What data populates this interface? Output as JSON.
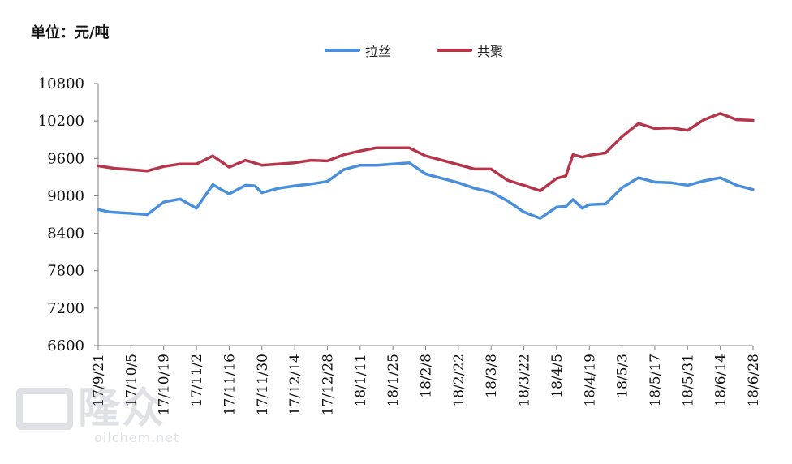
{
  "unit_label": "单位：元/吨",
  "watermark": {
    "logo_text": "隆众",
    "site": "oilchem.net"
  },
  "colors": {
    "axis": "#7f7f7f"
  },
  "chart_data": {
    "type": "line",
    "ylim": [
      6600,
      10800
    ],
    "y_ticks": [
      6600,
      7200,
      7800,
      8400,
      9000,
      9600,
      10200,
      10800
    ],
    "y_tick_labels": [
      "6600",
      "7200",
      "7800",
      "8400",
      "9000",
      "9600",
      "10200",
      "10800"
    ],
    "x_tick_labels": [
      "17/9/21",
      "17/10/5",
      "17/10/19",
      "17/11/2",
      "17/11/16",
      "17/11/30",
      "17/12/14",
      "17/12/28",
      "18/1/11",
      "18/1/25",
      "18/2/8",
      "18/2/22",
      "18/3/8",
      "18/3/22",
      "18/4/5",
      "18/4/19",
      "18/5/3",
      "18/5/17",
      "18/5/31",
      "18/6/14",
      "18/6/28"
    ],
    "legend_position": "top-center",
    "series": [
      {
        "name": "拉丝",
        "color": "#4a8fdc",
        "points": [
          [
            "17/9/21",
            8780
          ],
          [
            "17/9/26",
            8740
          ],
          [
            "17/10/5",
            8720
          ],
          [
            "17/10/12",
            8700
          ],
          [
            "17/10/19",
            8900
          ],
          [
            "17/10/26",
            8950
          ],
          [
            "17/11/2",
            8800
          ],
          [
            "17/11/9",
            9180
          ],
          [
            "17/11/16",
            9030
          ],
          [
            "17/11/23",
            9170
          ],
          [
            "17/11/27",
            9160
          ],
          [
            "17/11/30",
            9050
          ],
          [
            "17/12/7",
            9120
          ],
          [
            "17/12/14",
            9160
          ],
          [
            "17/12/21",
            9190
          ],
          [
            "17/12/28",
            9230
          ],
          [
            "18/1/4",
            9420
          ],
          [
            "18/1/11",
            9490
          ],
          [
            "18/1/18",
            9490
          ],
          [
            "18/1/25",
            9510
          ],
          [
            "18/2/1",
            9530
          ],
          [
            "18/2/8",
            9350
          ],
          [
            "18/2/15",
            9280
          ],
          [
            "18/2/22",
            9210
          ],
          [
            "18/3/1",
            9120
          ],
          [
            "18/3/8",
            9060
          ],
          [
            "18/3/15",
            8920
          ],
          [
            "18/3/22",
            8740
          ],
          [
            "18/3/29",
            8640
          ],
          [
            "18/4/5",
            8820
          ],
          [
            "18/4/9",
            8830
          ],
          [
            "18/4/12",
            8940
          ],
          [
            "18/4/16",
            8800
          ],
          [
            "18/4/19",
            8860
          ],
          [
            "18/4/26",
            8870
          ],
          [
            "18/5/3",
            9130
          ],
          [
            "18/5/10",
            9290
          ],
          [
            "18/5/17",
            9220
          ],
          [
            "18/5/24",
            9210
          ],
          [
            "18/5/31",
            9170
          ],
          [
            "18/6/7",
            9240
          ],
          [
            "18/6/14",
            9290
          ],
          [
            "18/6/21",
            9170
          ],
          [
            "18/6/28",
            9100
          ]
        ]
      },
      {
        "name": "共聚",
        "color": "#b5364b",
        "points": [
          [
            "17/9/21",
            9480
          ],
          [
            "17/9/28",
            9440
          ],
          [
            "17/10/5",
            9420
          ],
          [
            "17/10/12",
            9400
          ],
          [
            "17/10/19",
            9470
          ],
          [
            "17/10/26",
            9510
          ],
          [
            "17/11/2",
            9510
          ],
          [
            "17/11/9",
            9640
          ],
          [
            "17/11/16",
            9460
          ],
          [
            "17/11/23",
            9570
          ],
          [
            "17/11/30",
            9490
          ],
          [
            "17/12/7",
            9510
          ],
          [
            "17/12/14",
            9530
          ],
          [
            "17/12/21",
            9570
          ],
          [
            "17/12/28",
            9560
          ],
          [
            "18/1/4",
            9660
          ],
          [
            "18/1/11",
            9720
          ],
          [
            "18/1/18",
            9770
          ],
          [
            "18/1/25",
            9770
          ],
          [
            "18/2/1",
            9770
          ],
          [
            "18/2/8",
            9640
          ],
          [
            "18/2/15",
            9570
          ],
          [
            "18/2/22",
            9500
          ],
          [
            "18/3/1",
            9430
          ],
          [
            "18/3/8",
            9430
          ],
          [
            "18/3/15",
            9250
          ],
          [
            "18/3/22",
            9170
          ],
          [
            "18/3/29",
            9080
          ],
          [
            "18/4/5",
            9280
          ],
          [
            "18/4/9",
            9320
          ],
          [
            "18/4/12",
            9660
          ],
          [
            "18/4/16",
            9620
          ],
          [
            "18/4/19",
            9650
          ],
          [
            "18/4/26",
            9690
          ],
          [
            "18/5/3",
            9950
          ],
          [
            "18/5/10",
            10160
          ],
          [
            "18/5/17",
            10080
          ],
          [
            "18/5/24",
            10090
          ],
          [
            "18/5/31",
            10050
          ],
          [
            "18/6/7",
            10220
          ],
          [
            "18/6/14",
            10320
          ],
          [
            "18/6/21",
            10220
          ],
          [
            "18/6/28",
            10210
          ]
        ]
      }
    ]
  }
}
